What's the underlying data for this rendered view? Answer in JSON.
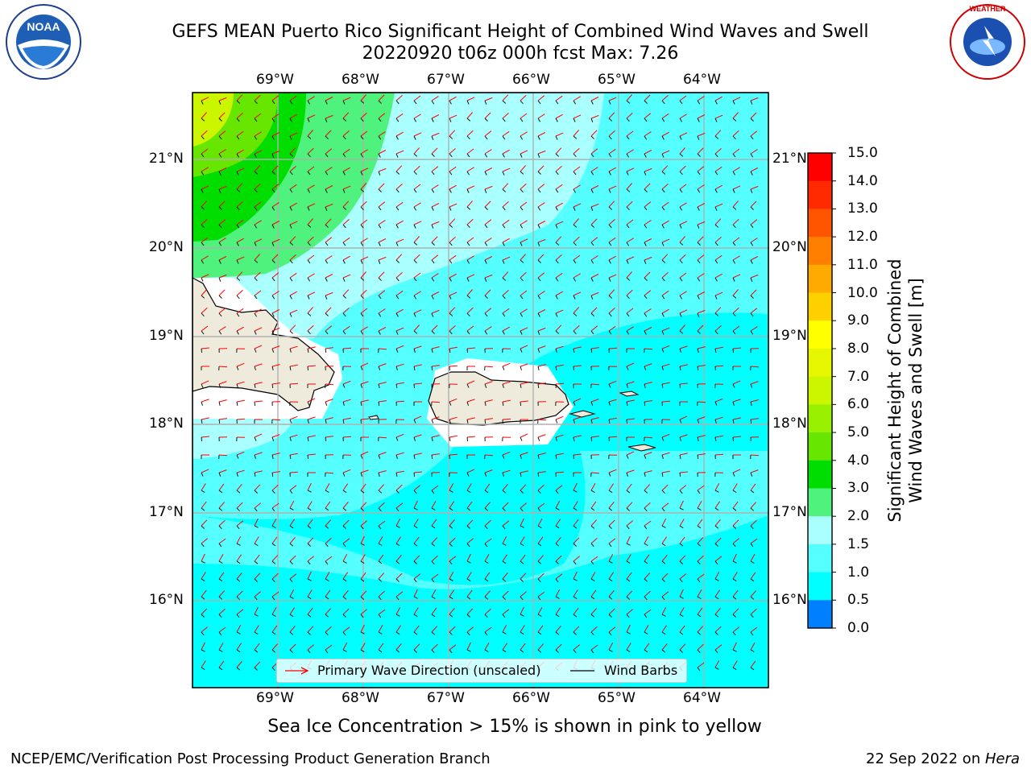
{
  "header": {
    "title_line1": "GEFS MEAN Puerto Rico Significant Height of Combined Wind Waves and Swell",
    "title_line2": "20220920 t06z 000h fcst   Max: 7.26"
  },
  "logos": {
    "left": "noaa-logo",
    "right": "nws-logo",
    "left_text": "NOAA",
    "right_text": "NATIONAL WEATHER SERVICE"
  },
  "map": {
    "lon_labels": [
      "69°W",
      "68°W",
      "67°W",
      "66°W",
      "65°W",
      "64°W"
    ],
    "lat_labels": [
      "21°N",
      "20°N",
      "19°N",
      "18°N",
      "17°N",
      "16°N"
    ],
    "legend": {
      "wave_label": "Primary Wave Direction (unscaled)",
      "barb_label": "Wind Barbs",
      "wave_color": "#ff0000",
      "barb_color": "#000000"
    },
    "land_color": "#efebdc",
    "grid_color": "#b0b0b0"
  },
  "colorbar": {
    "label_line1": "Significant Height of Combined",
    "label_line2": "Wind Waves and Swell [m]",
    "ticks": [
      "15.0",
      "14.0",
      "13.0",
      "12.0",
      "11.0",
      "10.0",
      "9.0",
      "8.0",
      "7.0",
      "6.0",
      "5.0",
      "4.0",
      "3.0",
      "2.0",
      "1.5",
      "1.0",
      "0.5",
      "0.0"
    ],
    "colors": [
      "#ff0000",
      "#ff2a00",
      "#ff5500",
      "#ff8000",
      "#ffaa00",
      "#ffd000",
      "#ffff00",
      "#e6f500",
      "#ccf500",
      "#99ef00",
      "#66e600",
      "#00dd00",
      "#4ef27c",
      "#aaffff",
      "#55ffff",
      "#00ffff",
      "#0080ff",
      "#0000ff"
    ]
  },
  "note": "Sea Ice Concentration > 15% is shown in pink to yellow",
  "footer": {
    "left": "NCEP/EMC/Verification Post Processing Product Generation Branch",
    "right_date": "22 Sep 2022 on ",
    "right_host": "Hera"
  }
}
